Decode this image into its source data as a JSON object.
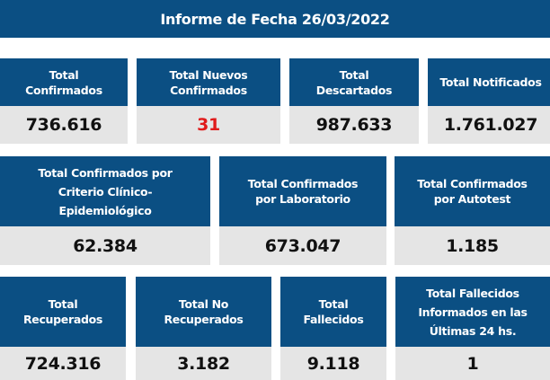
{
  "title": "Informe de Fecha 26/03/2022",
  "accent_color": "#0b4f83",
  "highlight_color": "#e01b1b",
  "row1": [
    {
      "label": "Total Confirmados",
      "value": "736.616"
    },
    {
      "label": "Total Nuevos Confirmados",
      "value": "31"
    },
    {
      "label": "Total Descartados",
      "value": "987.633"
    },
    {
      "label": "Total Notificados",
      "value": "1.761.027"
    }
  ],
  "row2": [
    {
      "label": "Total Confirmados por Criterio Clínico-Epidemiológico",
      "value": "62.384"
    },
    {
      "label": "Total Confirmados por Laboratorio",
      "value": "673.047"
    },
    {
      "label": "Total Confirmados por Autotest",
      "value": "1.185"
    }
  ],
  "row3": [
    {
      "label": "Total Recuperados",
      "value": "724.316"
    },
    {
      "label": "Total No Recuperados",
      "value": "3.182"
    },
    {
      "label": "Total Fallecidos",
      "value": "9.118"
    },
    {
      "label": "Total Fallecidos Informados en las Últimas 24 hs.",
      "value": "1"
    }
  ]
}
